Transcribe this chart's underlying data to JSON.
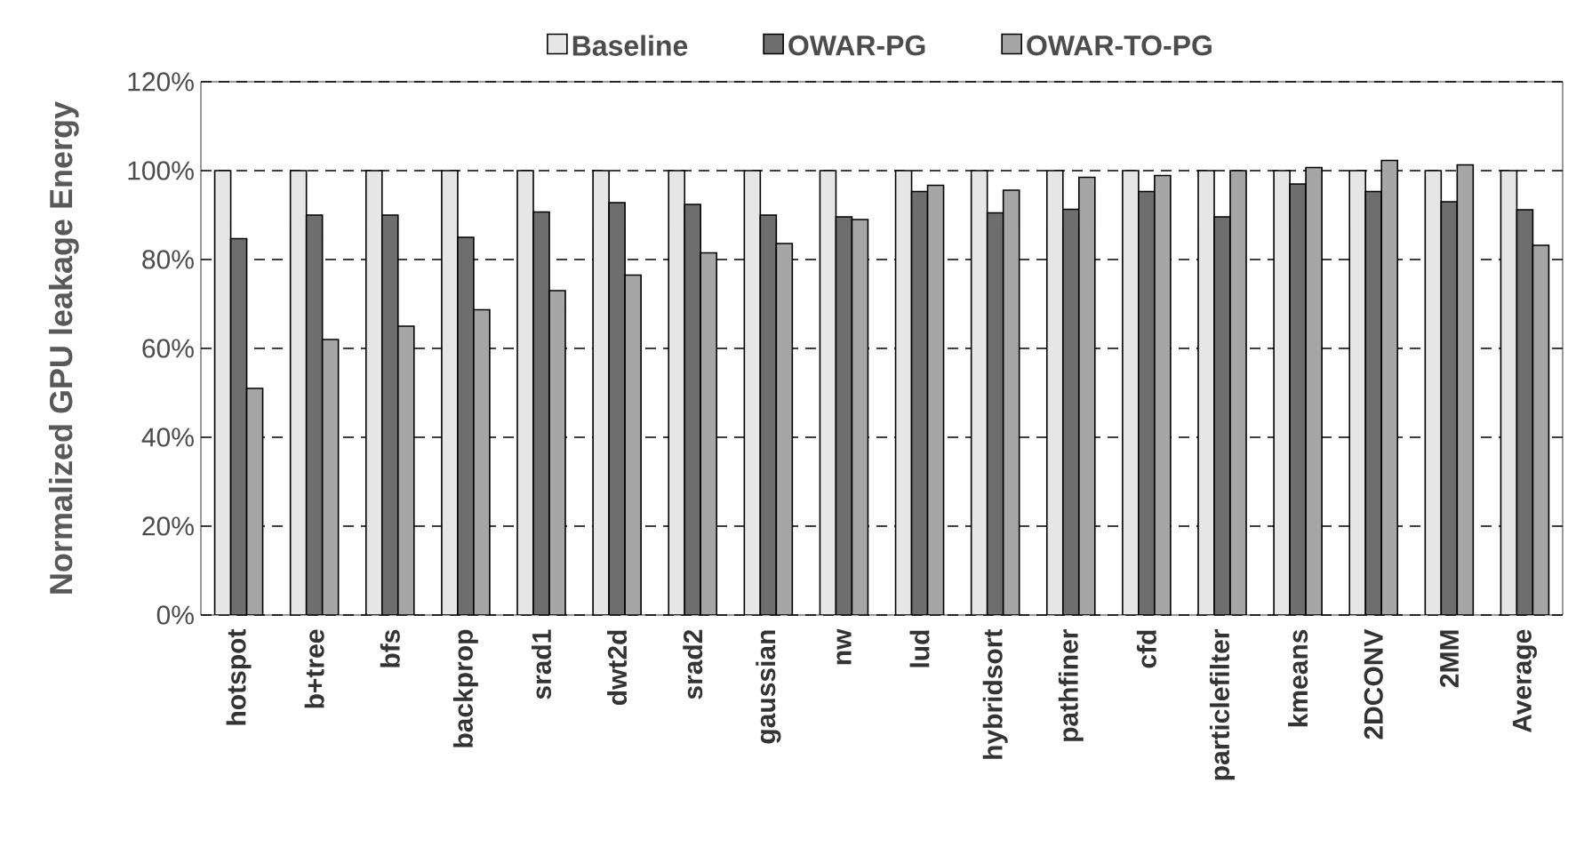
{
  "chart_data": {
    "type": "bar",
    "ylabel": "Normalized GPU leakage Energy",
    "categories": [
      "hotspot",
      "b+tree",
      "bfs",
      "backprop",
      "srad1",
      "dwt2d",
      "srad2",
      "gaussian",
      "nw",
      "lud",
      "hybridsort",
      "pathfiner",
      "cfd",
      "particlefilter",
      "kmeans",
      "2DCONV",
      "2MM",
      "Average"
    ],
    "series": [
      {
        "name": "Baseline",
        "color": "#e6e6e6",
        "values": [
          100,
          100,
          100,
          100,
          100,
          100,
          100,
          100,
          100,
          100,
          100,
          100,
          100,
          100,
          100,
          100,
          100,
          100
        ]
      },
      {
        "name": "OWAR-PG",
        "color": "#6e6e6e",
        "values": [
          84.7,
          90,
          90,
          85,
          90.7,
          92.8,
          92.4,
          90,
          89.6,
          95.3,
          90.5,
          91.3,
          95.3,
          89.6,
          97,
          95.3,
          93,
          91.2
        ]
      },
      {
        "name": "OWAR-TO-PG",
        "color": "#a6a6a6",
        "values": [
          51,
          62,
          65,
          68.7,
          73,
          76.5,
          81.5,
          83.6,
          89,
          96.7,
          95.6,
          98.5,
          98.9,
          100,
          100.7,
          102.3,
          101.3,
          83.2
        ]
      }
    ],
    "ylim": [
      0,
      120
    ],
    "yticks": [
      {
        "value": 0,
        "label": "0%"
      },
      {
        "value": 20,
        "label": "20%"
      },
      {
        "value": 40,
        "label": "40%"
      },
      {
        "value": 60,
        "label": "60%"
      },
      {
        "value": 80,
        "label": "80%"
      },
      {
        "value": 100,
        "label": "100%"
      },
      {
        "value": 120,
        "label": "120%"
      }
    ],
    "grid": "y",
    "legend": "top"
  }
}
